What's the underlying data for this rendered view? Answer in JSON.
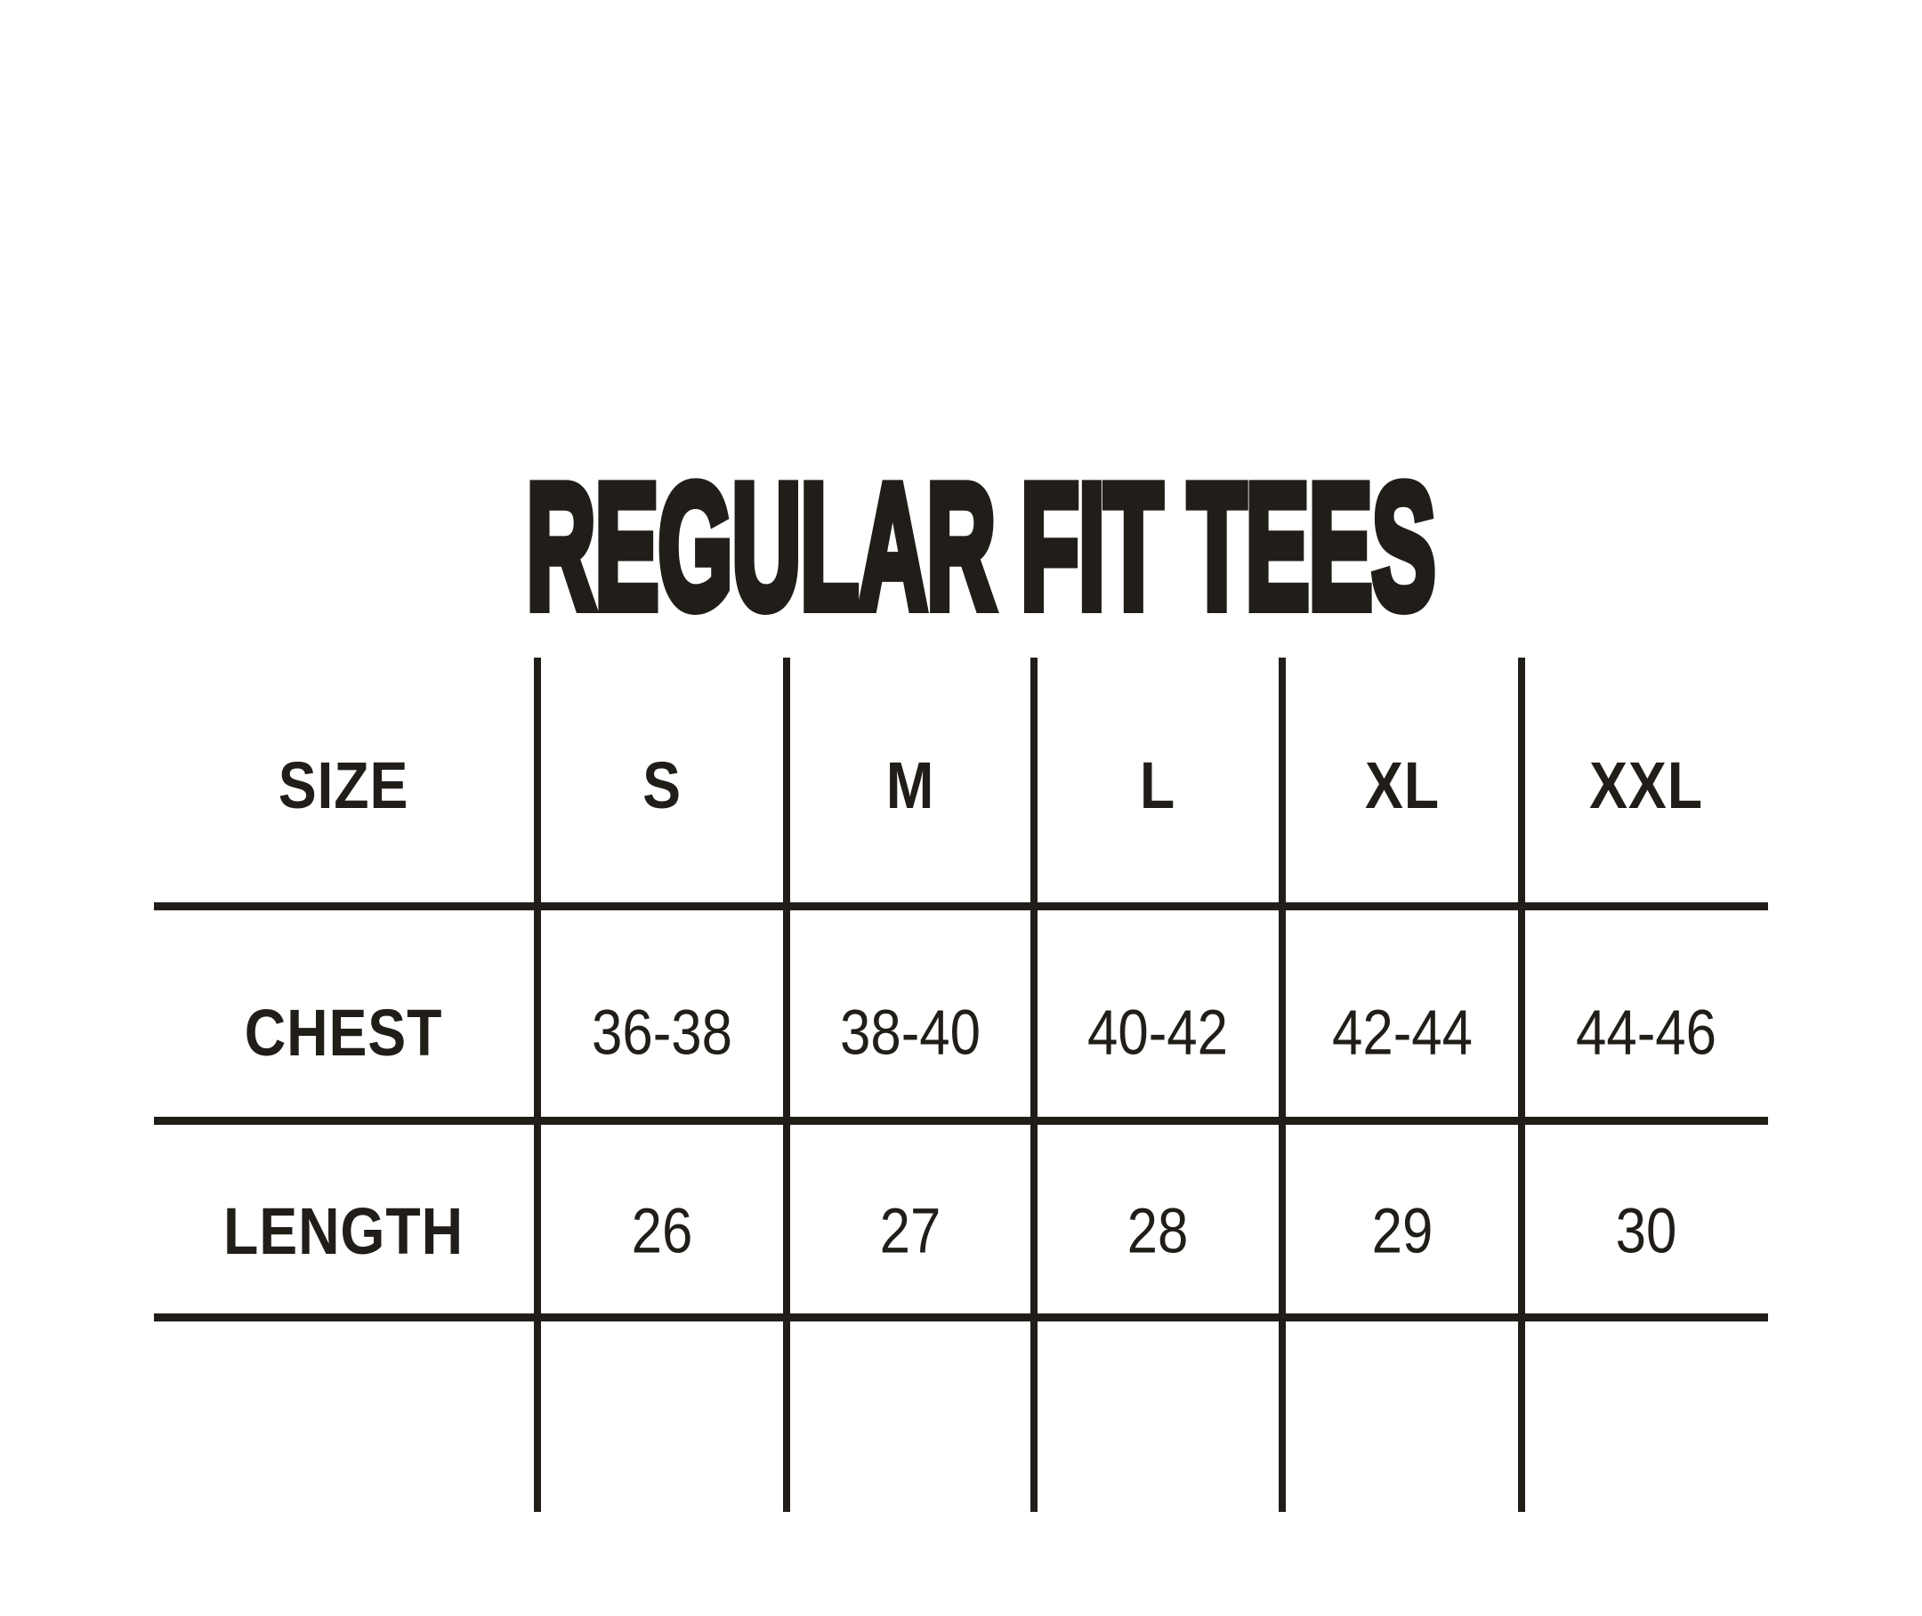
{
  "chart_data": {
    "type": "table",
    "title": "REGULAR FIT TEES",
    "columns": [
      "SIZE",
      "S",
      "M",
      "L",
      "XL",
      "XXL"
    ],
    "rows": [
      [
        "CHEST",
        "36-38",
        "38-40",
        "40-42",
        "42-44",
        "44-46"
      ],
      [
        "LENGTH",
        "26",
        "27",
        "28",
        "29",
        "30"
      ]
    ],
    "layout_hints": {
      "header_row_separated_by_thick_rule": true,
      "vertical_rules_between_columns": 5,
      "horizontal_rules": 3,
      "grid": "open edges (no outer border)"
    }
  },
  "colors": {
    "ink": "#211e19",
    "background": "#ffffff"
  }
}
